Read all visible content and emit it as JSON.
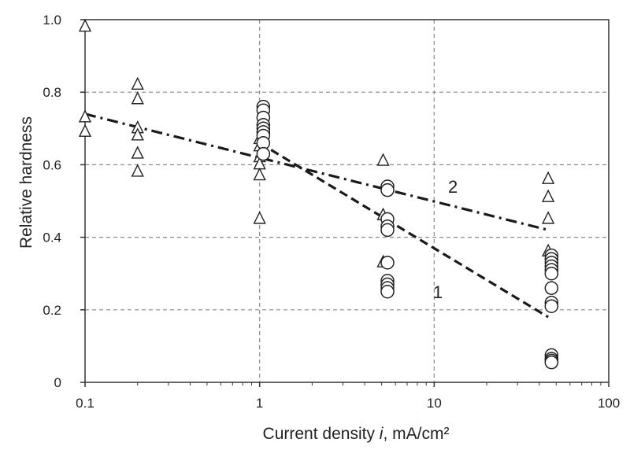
{
  "chart_data": {
    "type": "scatter",
    "xlabel_prefix": "Current density ",
    "xlabel_var": "i",
    "xlabel_suffix": ", mA/cm²",
    "ylabel": "Relative hardness",
    "x_scale": "log",
    "xlim": [
      0.1,
      100
    ],
    "ylim": [
      0,
      1.0
    ],
    "x_ticks": [
      0.1,
      1,
      10,
      100
    ],
    "x_tick_labels": [
      "0.1",
      "1",
      "10",
      "100"
    ],
    "y_ticks": [
      0,
      0.2,
      0.4,
      0.6,
      0.8,
      1.0
    ],
    "y_tick_labels": [
      "0",
      "0.2",
      "0.4",
      "0.6",
      "0.8",
      "1.0"
    ],
    "grid": "dashed",
    "series": [
      {
        "marker": "triangle",
        "points": [
          [
            0.1,
            0.98
          ],
          [
            0.1,
            0.73
          ],
          [
            0.1,
            0.69
          ],
          [
            0.2,
            0.82
          ],
          [
            0.2,
            0.78
          ],
          [
            0.2,
            0.7
          ],
          [
            0.2,
            0.68
          ],
          [
            0.2,
            0.63
          ],
          [
            0.2,
            0.58
          ],
          [
            1.0,
            0.67
          ],
          [
            1.0,
            0.65
          ],
          [
            1.0,
            0.62
          ],
          [
            1.0,
            0.6
          ],
          [
            1.0,
            0.57
          ],
          [
            1.0,
            0.45
          ],
          [
            5.1,
            0.61
          ],
          [
            5.1,
            0.46
          ],
          [
            5.1,
            0.33
          ],
          [
            45,
            0.56
          ],
          [
            45,
            0.51
          ],
          [
            45,
            0.45
          ],
          [
            45,
            0.36
          ]
        ]
      },
      {
        "marker": "circle",
        "points": [
          [
            1.05,
            0.76
          ],
          [
            1.05,
            0.75
          ],
          [
            1.05,
            0.73
          ],
          [
            1.05,
            0.71
          ],
          [
            1.05,
            0.7
          ],
          [
            1.05,
            0.69
          ],
          [
            1.05,
            0.68
          ],
          [
            1.05,
            0.66
          ],
          [
            1.05,
            0.63
          ],
          [
            5.4,
            0.54
          ],
          [
            5.4,
            0.53
          ],
          [
            5.4,
            0.45
          ],
          [
            5.4,
            0.43
          ],
          [
            5.4,
            0.42
          ],
          [
            5.4,
            0.33
          ],
          [
            5.4,
            0.28
          ],
          [
            5.4,
            0.27
          ],
          [
            5.4,
            0.26
          ],
          [
            5.4,
            0.25
          ],
          [
            47,
            0.35
          ],
          [
            47,
            0.34
          ],
          [
            47,
            0.33
          ],
          [
            47,
            0.32
          ],
          [
            47,
            0.31
          ],
          [
            47,
            0.3
          ],
          [
            47,
            0.26
          ],
          [
            47,
            0.22
          ],
          [
            47,
            0.21
          ],
          [
            47,
            0.075
          ],
          [
            47,
            0.065
          ],
          [
            47,
            0.06
          ],
          [
            47,
            0.055
          ]
        ]
      }
    ],
    "trend_lines": [
      {
        "label": "1",
        "style": "dashed",
        "from": [
          1.0,
          0.66
        ],
        "to": [
          45,
          0.18
        ],
        "label_at": [
          10.5,
          0.25
        ]
      },
      {
        "label": "2",
        "style": "dash-dot",
        "from": [
          0.1,
          0.74
        ],
        "to": [
          45,
          0.42
        ],
        "label_at": [
          12.8,
          0.54
        ]
      }
    ]
  }
}
